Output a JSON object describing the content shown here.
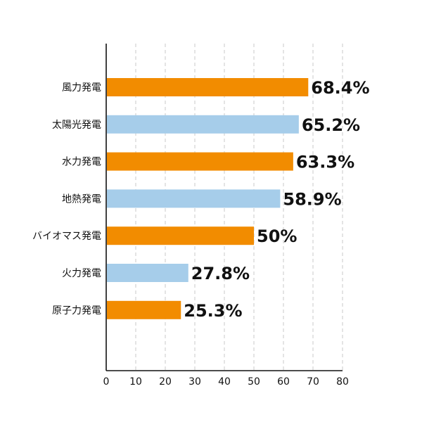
{
  "chart_data": {
    "type": "bar",
    "orientation": "horizontal",
    "categories": [
      "風力発電",
      "太陽光発電",
      "水力発電",
      "地熱発電",
      "バイオマス発電",
      "火力発電",
      "原子力発電"
    ],
    "values": [
      68.4,
      65.2,
      63.3,
      58.9,
      50,
      27.8,
      25.3
    ],
    "data_labels": [
      "68.4%",
      "65.2%",
      "63.3%",
      "58.9%",
      "50%",
      "27.8%",
      "25.3%"
    ],
    "bar_colors": [
      "#f28c00",
      "#a6cdea",
      "#f28c00",
      "#a6cdea",
      "#f28c00",
      "#a6cdea",
      "#f28c00"
    ],
    "x_ticks": [
      0,
      10,
      20,
      30,
      40,
      50,
      60,
      70,
      80
    ],
    "xlim": [
      0,
      80
    ],
    "grid": "vertical-dashed",
    "title": "",
    "xlabel": "",
    "ylabel": ""
  }
}
